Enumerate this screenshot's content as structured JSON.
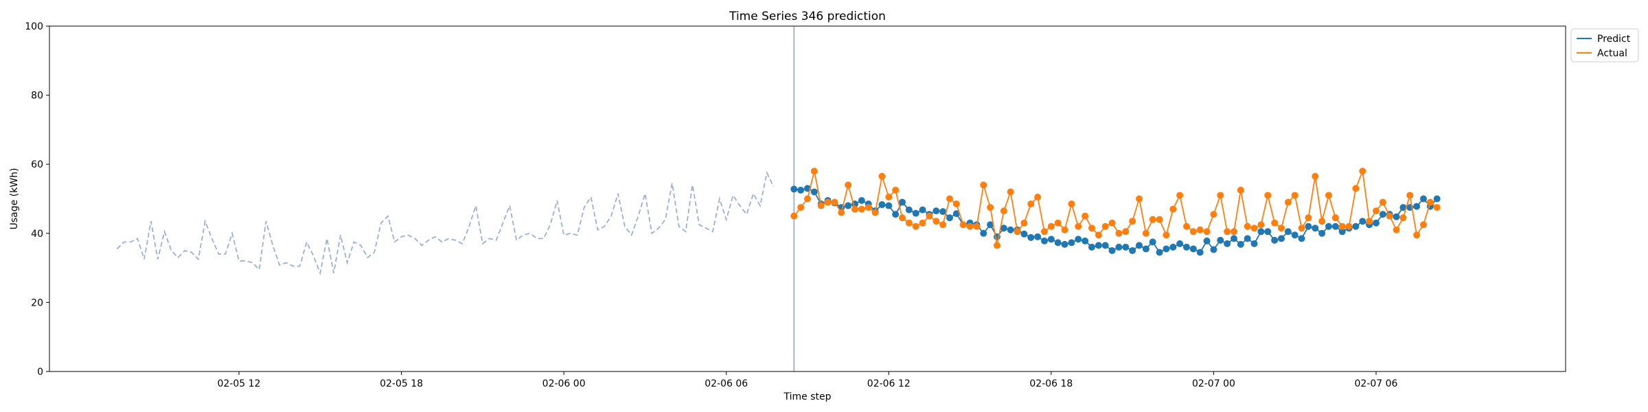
{
  "chart_data": {
    "type": "line",
    "title": "Time Series 346 prediction",
    "xlabel": "Time step",
    "ylabel": "Usage (kWh)",
    "ylim": [
      0,
      100
    ],
    "xlim": [
      "2025-02-05 05:00",
      "2025-02-07 13:00"
    ],
    "y_ticks": [
      0,
      20,
      40,
      60,
      80,
      100
    ],
    "x_ticks": [
      {
        "at": "2025-02-05 12:00",
        "label": "02-05 12"
      },
      {
        "at": "2025-02-05 18:00",
        "label": "02-05 18"
      },
      {
        "at": "2025-02-06 00:00",
        "label": "02-06 00"
      },
      {
        "at": "2025-02-06 06:00",
        "label": "02-06 06"
      },
      {
        "at": "2025-02-06 12:00",
        "label": "02-06 12"
      },
      {
        "at": "2025-02-06 18:00",
        "label": "02-06 18"
      },
      {
        "at": "2025-02-07 00:00",
        "label": "02-07 00"
      },
      {
        "at": "2025-02-07 06:00",
        "label": "02-07 06"
      }
    ],
    "grid": false,
    "legend_position": "top-right",
    "forecast_start": "2025-02-06 08:30",
    "step_minutes": 15,
    "history": {
      "start": "2025-02-05 07:30",
      "color": "#9bb0cc",
      "values": [
        35.5,
        37.5,
        37.5,
        38.5,
        32.5,
        43.5,
        32.5,
        40.5,
        35,
        33,
        35,
        34.5,
        32.5,
        43.5,
        38.5,
        34,
        34,
        40,
        32,
        32,
        31.5,
        29.5,
        43.5,
        36.5,
        30.8,
        31.5,
        30.5,
        30.5,
        37.5,
        33.5,
        28.5,
        38.5,
        28.5,
        39.5,
        31.5,
        37.5,
        36.5,
        33,
        34.5,
        43,
        45,
        37.5,
        39,
        39.5,
        38.5,
        36.5,
        38,
        39,
        37.5,
        38.5,
        38,
        37,
        42,
        48,
        37,
        38.5,
        38,
        43,
        48,
        38,
        39.5,
        40,
        38.5,
        38.5,
        42.5,
        49.5,
        39.5,
        40,
        39.5,
        47.5,
        50.5,
        41,
        42,
        45,
        51.5,
        42,
        39.5,
        45,
        51.5,
        40,
        41.5,
        44,
        54.5,
        42,
        40.5,
        54,
        42.5,
        41.5,
        40.5,
        50,
        44,
        51,
        48,
        45.5,
        51.5,
        48,
        57.5,
        53.5
      ]
    },
    "series": [
      {
        "name": "Predict",
        "color": "#1f77b4",
        "start": "2025-02-06 08:30",
        "values": [
          52.8,
          52.5,
          53,
          52,
          48.5,
          49.5,
          48.8,
          47.5,
          48,
          48.5,
          49.5,
          48.5,
          46.5,
          48.3,
          48,
          45.5,
          49,
          46.8,
          45.8,
          46.8,
          45.5,
          46.5,
          46.3,
          44.5,
          45.7,
          42.5,
          43,
          42.5,
          40,
          42.5,
          39,
          41.5,
          41,
          41,
          39.8,
          38.8,
          39,
          37.8,
          38.3,
          37.3,
          36.8,
          37.3,
          38.3,
          37.8,
          36,
          36.5,
          36.5,
          35,
          36,
          36,
          35,
          36.5,
          35.5,
          37.5,
          34.5,
          35.5,
          36,
          37,
          36,
          35.5,
          34.5,
          37.8,
          35.3,
          38,
          37,
          38.5,
          36.8,
          38.5,
          37,
          40.5,
          40.5,
          38,
          38.5,
          40.5,
          39.5,
          38.5,
          42,
          41.5,
          40,
          42,
          42,
          40.5,
          41.5,
          42,
          43.5,
          42.5,
          43,
          45.5,
          45.5,
          44.8,
          47.5,
          47.5,
          47.8,
          50,
          47.8,
          50
        ]
      },
      {
        "name": "Actual",
        "color": "#ff7f0e",
        "start": "2025-02-06 08:30",
        "values": [
          45,
          47.5,
          50,
          58,
          48,
          49,
          49,
          46,
          54,
          47,
          47,
          47.5,
          46,
          56.5,
          50.5,
          52.5,
          44.5,
          43,
          42,
          43,
          45,
          43.5,
          42.5,
          50,
          48.5,
          42.5,
          42,
          42,
          54,
          47.5,
          36.5,
          46.5,
          52,
          40.5,
          43,
          48.5,
          50.5,
          40.5,
          42,
          43,
          41,
          48.5,
          42,
          45,
          41.5,
          39.5,
          42,
          43,
          40,
          40.5,
          43.5,
          50,
          40,
          44,
          44,
          39.5,
          47,
          51,
          42,
          40.5,
          41,
          40.5,
          45.5,
          51,
          40.5,
          40.5,
          52.5,
          42,
          41.5,
          42.5,
          51,
          43,
          41.5,
          49,
          51,
          41.5,
          44.5,
          56.5,
          43.5,
          51,
          44.5,
          42,
          42,
          53,
          58,
          43.5,
          46.5,
          49,
          45,
          41,
          44.5,
          51,
          39.5,
          42.5,
          49,
          47.5
        ]
      }
    ]
  }
}
